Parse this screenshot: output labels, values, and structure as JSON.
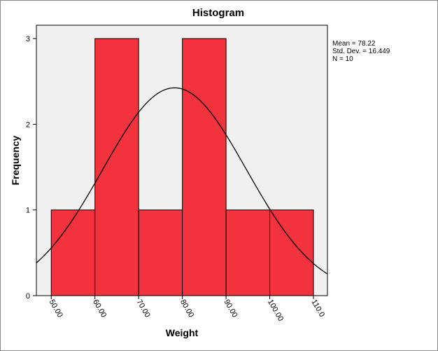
{
  "chart_data": {
    "type": "histogram",
    "title": "Histogram",
    "x_label": "Weight",
    "y_label": "Frequency",
    "bins": [
      50,
      60,
      70,
      80,
      90,
      100,
      110
    ],
    "values": [
      1,
      3,
      1,
      3,
      1,
      1
    ],
    "color": "#f2323c",
    "xlim": [
      46.6,
      113.2
    ],
    "xticks": [
      {
        "value": 50,
        "label": "50.00"
      },
      {
        "value": 60,
        "label": "60.00"
      },
      {
        "value": 70,
        "label": "70.00"
      },
      {
        "value": 80,
        "label": "80.00"
      },
      {
        "value": 90,
        "label": "90.00"
      },
      {
        "value": 100,
        "label": "100.00"
      },
      {
        "value": 110,
        "label": "110.0"
      }
    ],
    "ylim": [
      0,
      3.156
    ],
    "yticks": [
      0,
      1,
      2,
      3
    ],
    "annotations": [
      "Mean = 78.22",
      "Std. Dev. = 16.449",
      "N = 10"
    ],
    "normal_curve": {
      "mean": 78.22,
      "sd": 16.449,
      "n": 10
    }
  }
}
